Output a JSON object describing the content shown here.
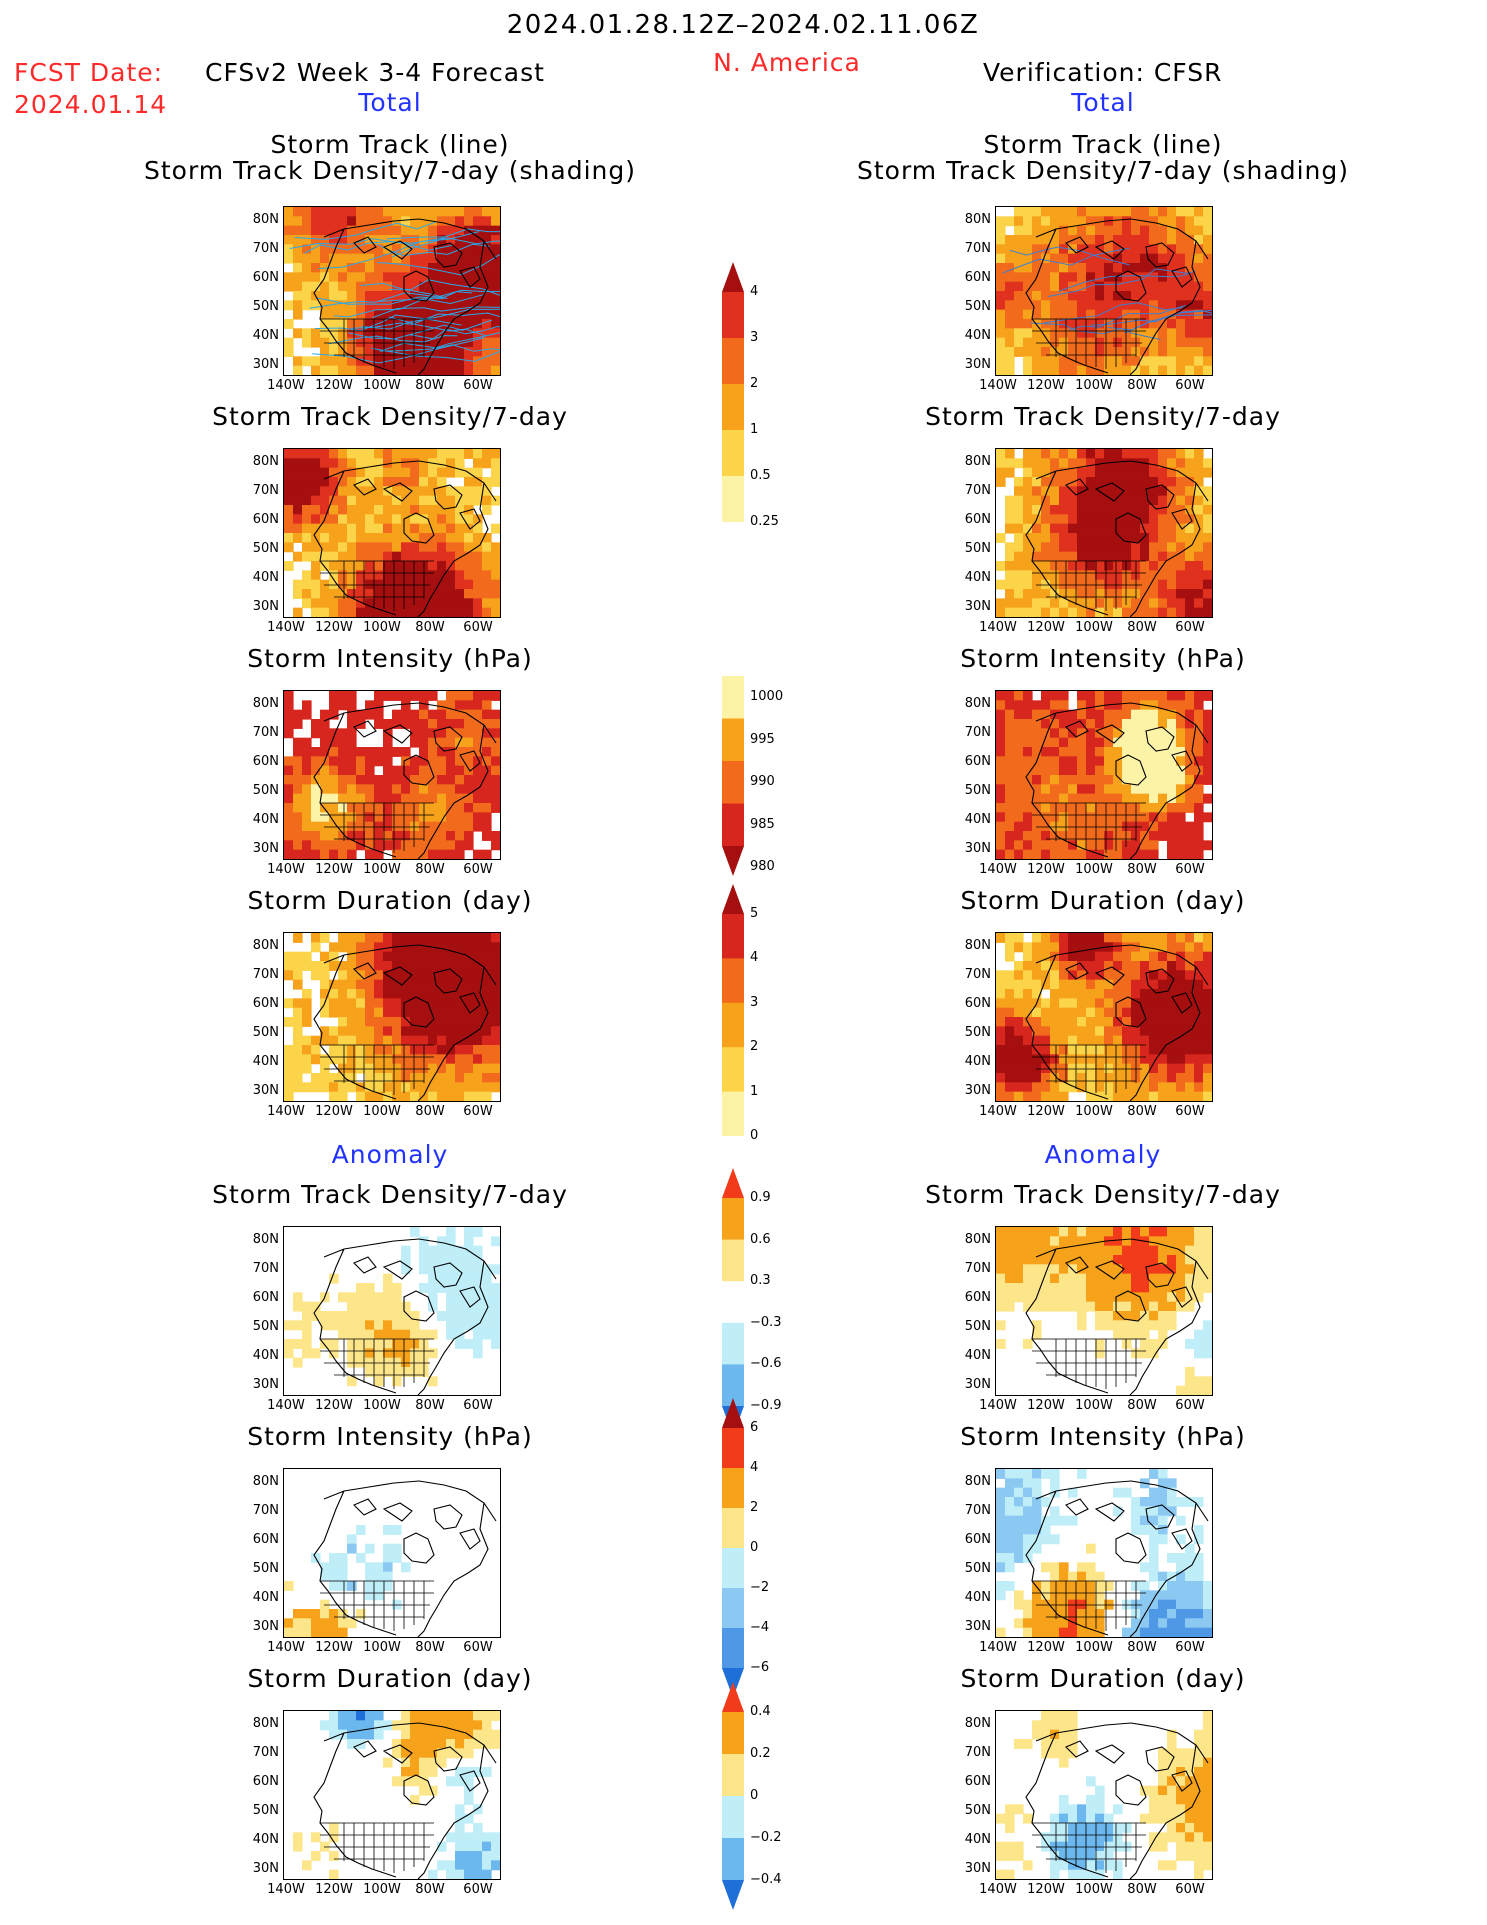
{
  "header": {
    "period": "2024.01.28.12Z–2024.02.11.06Z",
    "region": "N. America",
    "fcst_date_label": "FCST Date:",
    "fcst_date": "2024.01.14",
    "left_title": "CFSv2 Week 3-4 Forecast",
    "right_title": "Verification: CFSR"
  },
  "sections": {
    "total": "Total",
    "anomaly": "Anomaly"
  },
  "panel_titles": {
    "track_line": "Storm Track (line)",
    "track_shading": "Storm Track Density/7-day (shading)",
    "density": "Storm Track Density/7-day",
    "intensity": "Storm Intensity (hPa)",
    "duration": "Storm Duration (day)"
  },
  "axes": {
    "lat_ticks": [
      "80N",
      "70N",
      "60N",
      "50N",
      "40N",
      "30N"
    ],
    "lon_ticks": [
      "140W",
      "120W",
      "100W",
      "80W",
      "60W"
    ]
  },
  "colorbars": {
    "density_total": {
      "labels": [
        "4",
        "3",
        "2",
        "1",
        "0.5",
        "0.25"
      ],
      "colors": [
        "#a50f0f",
        "#e0301e",
        "#f26b1d",
        "#f7a21b",
        "#fbd44a",
        "#fdf3a6"
      ]
    },
    "intensity_total": {
      "labels": [
        "1000",
        "995",
        "990",
        "985",
        "980"
      ],
      "colors": [
        "#fdf3a6",
        "#f7a21b",
        "#f26b1d",
        "#d7261e",
        "#a50f0f"
      ]
    },
    "duration_total": {
      "labels": [
        "5",
        "4",
        "3",
        "2",
        "1",
        "0"
      ],
      "colors": [
        "#a50f0f",
        "#d7261e",
        "#f26b1d",
        "#f7a21b",
        "#fbd44a",
        "#fdf3a6"
      ]
    },
    "density_anom": {
      "labels": [
        "0.9",
        "0.6",
        "0.3",
        "−0.3",
        "−0.6",
        "−0.9"
      ],
      "colors": [
        "#f23b1b",
        "#f7a21b",
        "#fde68a",
        "#ffffff",
        "#bfeef9",
        "#6cb8ee",
        "#1f6fd8"
      ]
    },
    "intensity_anom": {
      "labels": [
        "6",
        "4",
        "2",
        "0",
        "−2",
        "−4",
        "−6"
      ],
      "colors": [
        "#a50f0f",
        "#f23b1b",
        "#f7a21b",
        "#fde68a",
        "#bfeef9",
        "#8cc9f2",
        "#4f98e6",
        "#1f6fd8"
      ]
    },
    "duration_anom": {
      "labels": [
        "0.4",
        "0.2",
        "0",
        "−0.2",
        "−0.4"
      ],
      "colors": [
        "#f23b1b",
        "#f7a21b",
        "#fde68a",
        "#bfeef9",
        "#6cb8ee",
        "#1f6fd8"
      ]
    }
  }
}
